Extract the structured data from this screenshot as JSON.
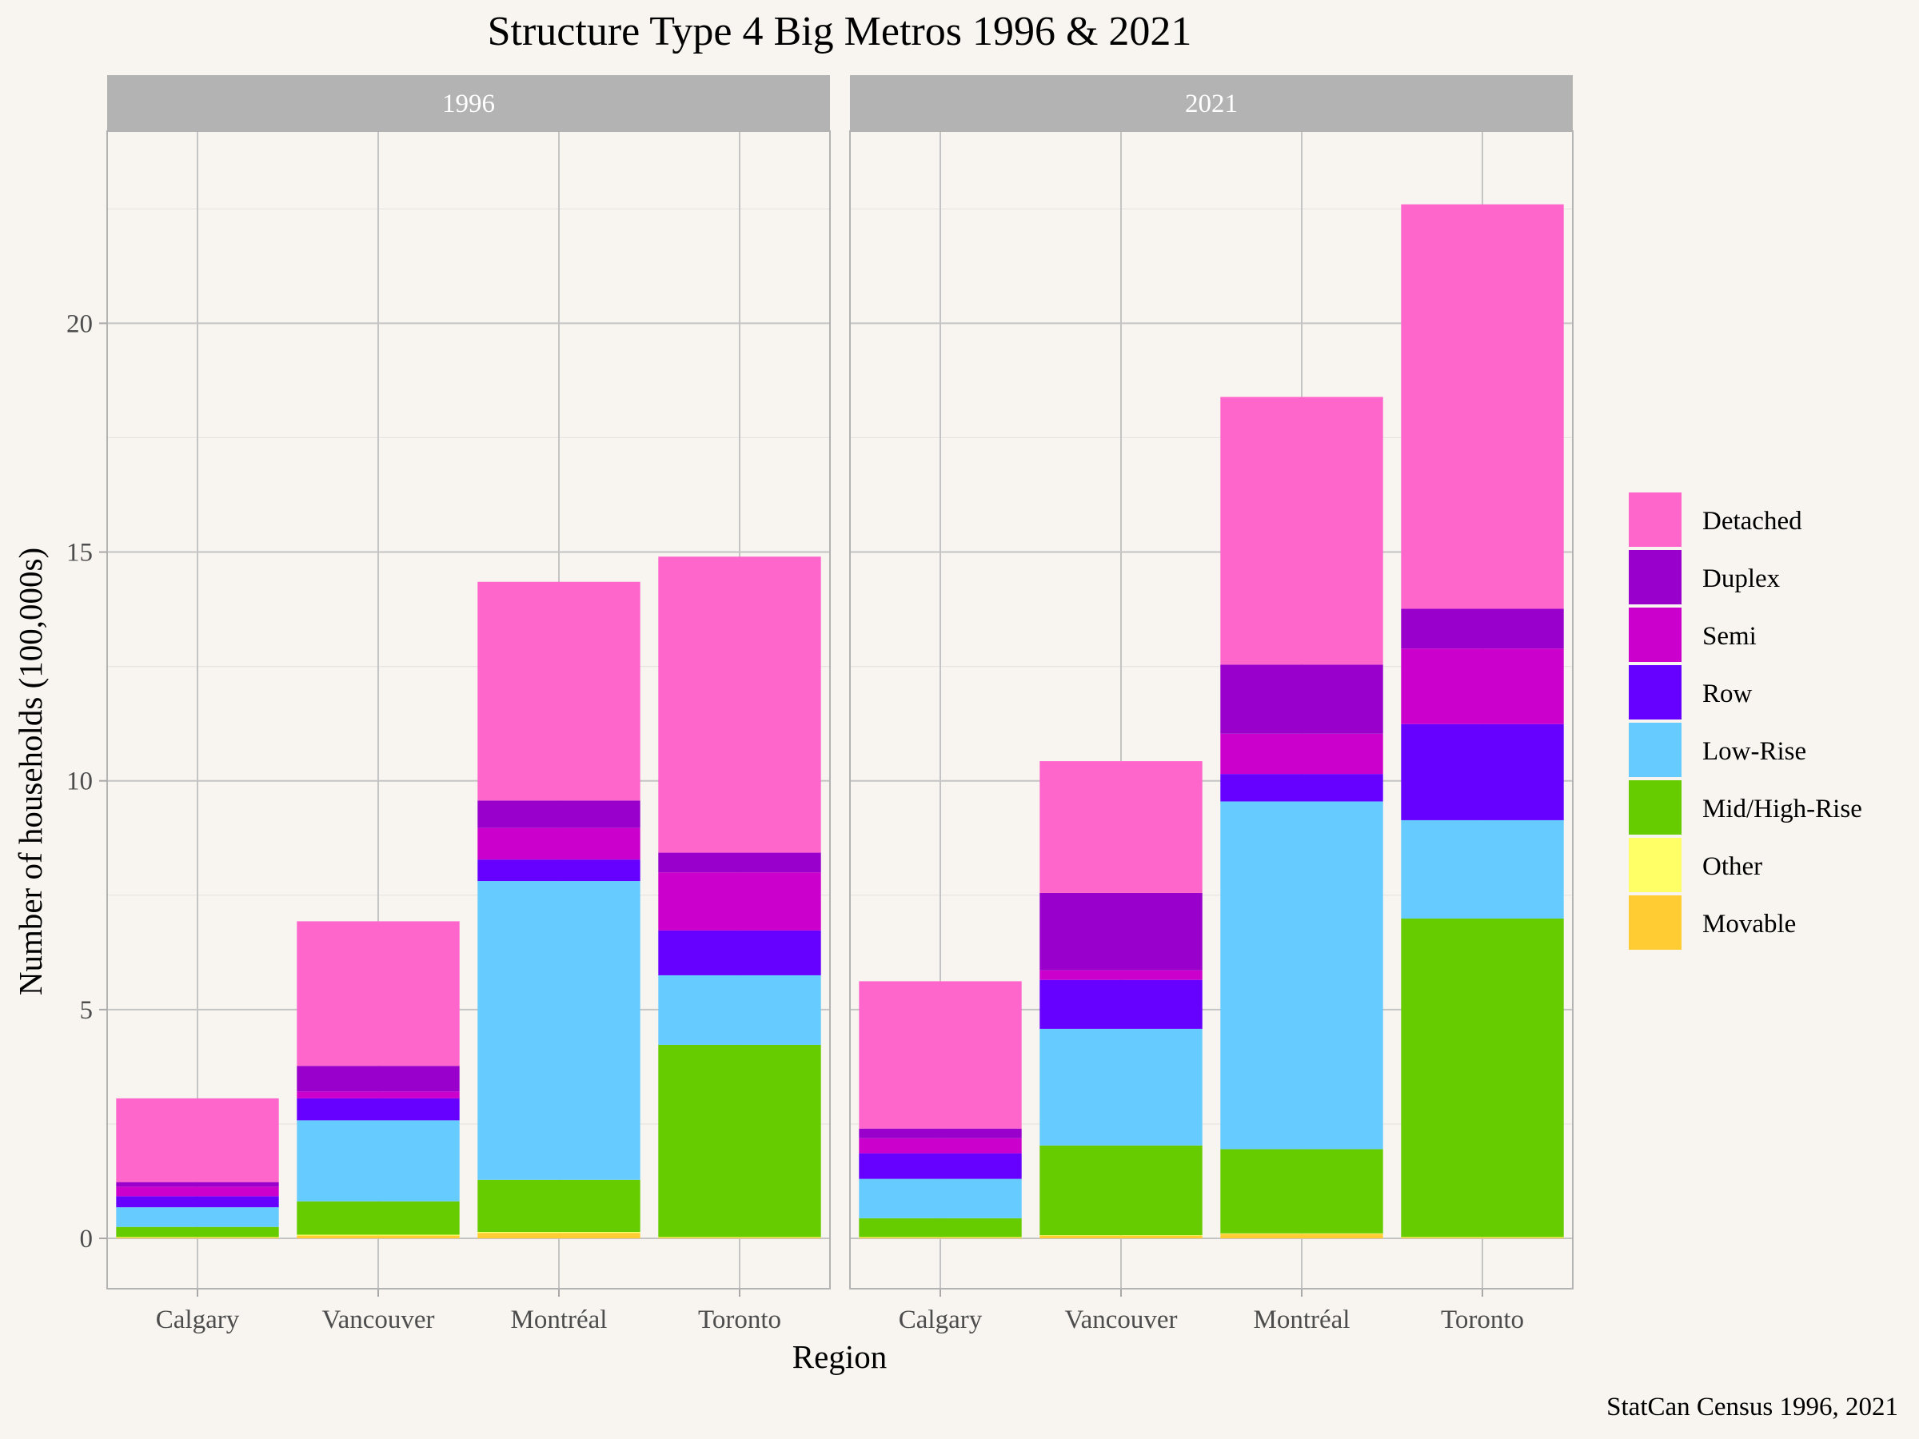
{
  "chart_data": {
    "type": "bar",
    "stacked": true,
    "title": "Structure Type 4 Big Metros 1996 & 2021",
    "xlabel": "Region",
    "ylabel": "Number of households (100,000s)",
    "caption": "StatCan Census 1996, 2021",
    "ylim": [
      -1.1,
      24.2
    ],
    "yticks": [
      0,
      5,
      10,
      15,
      20
    ],
    "grid": true,
    "legend_position": "right",
    "categories": [
      "Calgary",
      "Vancouver",
      "Montréal",
      "Toronto"
    ],
    "facets": [
      "1996",
      "2021"
    ],
    "series": [
      {
        "name": "Movable",
        "color": "#ffcc33",
        "values": {
          "1996": [
            0.02,
            0.06,
            0.12,
            0.02
          ],
          "2021": [
            0.02,
            0.06,
            0.1,
            0.02
          ]
        }
      },
      {
        "name": "Other",
        "color": "#ffff66",
        "values": {
          "1996": [
            0.01,
            0.02,
            0.02,
            0.01
          ],
          "2021": [
            0.01,
            0.01,
            0.01,
            0.01
          ]
        }
      },
      {
        "name": "Mid/High-Rise",
        "color": "#66cc00",
        "values": {
          "1996": [
            0.22,
            0.73,
            1.14,
            4.2
          ],
          "2021": [
            0.41,
            1.96,
            1.84,
            6.96
          ]
        }
      },
      {
        "name": "Low-Rise",
        "color": "#66ccff",
        "values": {
          "1996": [
            0.43,
            1.77,
            6.53,
            1.52
          ],
          "2021": [
            0.86,
            2.55,
            7.6,
            2.15
          ]
        }
      },
      {
        "name": "Row",
        "color": "#6600ff",
        "values": {
          "1996": [
            0.24,
            0.48,
            0.47,
            0.98
          ],
          "2021": [
            0.56,
            1.07,
            0.6,
            2.1
          ]
        }
      },
      {
        "name": "Semi",
        "color": "#cc00cc",
        "values": {
          "1996": [
            0.21,
            0.15,
            0.69,
            1.27
          ],
          "2021": [
            0.33,
            0.21,
            0.88,
            1.65
          ]
        }
      },
      {
        "name": "Duplex",
        "color": "#9900cc",
        "values": {
          "1996": [
            0.1,
            0.56,
            0.6,
            0.43
          ],
          "2021": [
            0.21,
            1.69,
            1.51,
            0.87
          ]
        }
      },
      {
        "name": "Detached",
        "color": "#ff66cc",
        "values": {
          "1996": [
            1.83,
            3.16,
            4.78,
            6.47
          ],
          "2021": [
            3.22,
            2.88,
            5.85,
            8.84
          ]
        }
      }
    ],
    "legend_order": [
      "Detached",
      "Duplex",
      "Semi",
      "Row",
      "Low-Rise",
      "Mid/High-Rise",
      "Other",
      "Movable"
    ]
  }
}
